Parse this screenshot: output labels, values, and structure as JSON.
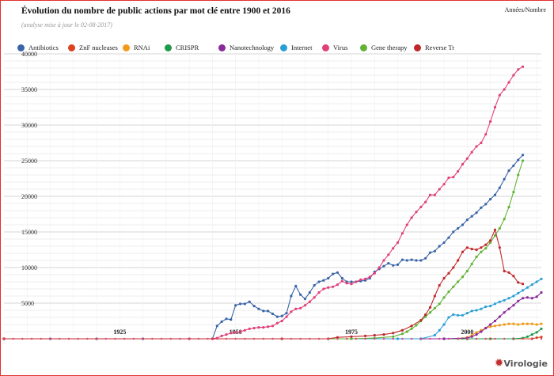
{
  "header": {
    "title": "Évolution du nombre de public actions par mot clé entre 1900 et 2016",
    "subtitle": "(analyse mise à jour le 02-08-2017)",
    "top_right": "Années/Nombre"
  },
  "logo": {
    "text": "Virologie"
  },
  "chart_data": {
    "type": "line",
    "title": "Évolution du nombre de public actions par mot clé entre 1900 et 2016",
    "subtitle": "(analyse mise à jour le 02-08-2017)",
    "xlabel": "",
    "ylabel": "",
    "xlim": [
      1900,
      2016
    ],
    "ylim": [
      0,
      40000
    ],
    "yticks": [
      5000,
      10000,
      15000,
      20000,
      25000,
      30000,
      35000,
      40000
    ],
    "xtick_labels": [
      1925,
      1950,
      1975,
      2000
    ],
    "grid": true,
    "legend_position": "top",
    "series": [
      {
        "name": "Antibiotics",
        "color": "#3a64a8",
        "points": [
          [
            1900,
            0
          ],
          [
            1910,
            0
          ],
          [
            1920,
            0
          ],
          [
            1930,
            0
          ],
          [
            1940,
            0
          ],
          [
            1945,
            0
          ],
          [
            1946,
            1800
          ],
          [
            1947,
            2400
          ],
          [
            1948,
            2800
          ],
          [
            1949,
            2700
          ],
          [
            1950,
            4700
          ],
          [
            1951,
            4900
          ],
          [
            1952,
            4900
          ],
          [
            1953,
            5200
          ],
          [
            1954,
            4600
          ],
          [
            1955,
            4200
          ],
          [
            1956,
            3900
          ],
          [
            1957,
            3900
          ],
          [
            1958,
            3500
          ],
          [
            1959,
            3100
          ],
          [
            1960,
            3200
          ],
          [
            1961,
            3600
          ],
          [
            1962,
            6000
          ],
          [
            1963,
            7400
          ],
          [
            1964,
            6200
          ],
          [
            1965,
            5600
          ],
          [
            1966,
            6500
          ],
          [
            1967,
            7500
          ],
          [
            1968,
            8000
          ],
          [
            1969,
            8200
          ],
          [
            1970,
            8500
          ],
          [
            1971,
            9100
          ],
          [
            1972,
            9300
          ],
          [
            1973,
            8500
          ],
          [
            1974,
            8000
          ],
          [
            1975,
            8000
          ],
          [
            1976,
            8000
          ],
          [
            1977,
            8100
          ],
          [
            1978,
            8200
          ],
          [
            1979,
            8500
          ],
          [
            1980,
            9400
          ],
          [
            1981,
            9800
          ],
          [
            1982,
            10200
          ],
          [
            1983,
            10600
          ],
          [
            1984,
            10300
          ],
          [
            1985,
            10400
          ],
          [
            1986,
            11100
          ],
          [
            1987,
            11000
          ],
          [
            1988,
            11100
          ],
          [
            1989,
            11000
          ],
          [
            1990,
            11000
          ],
          [
            1991,
            11300
          ],
          [
            1992,
            12100
          ],
          [
            1993,
            12300
          ],
          [
            1994,
            13000
          ],
          [
            1995,
            13500
          ],
          [
            1996,
            14200
          ],
          [
            1997,
            15000
          ],
          [
            1998,
            15500
          ],
          [
            1999,
            16000
          ],
          [
            2000,
            16700
          ],
          [
            2001,
            17200
          ],
          [
            2002,
            17700
          ],
          [
            2003,
            18400
          ],
          [
            2004,
            18900
          ],
          [
            2005,
            19600
          ],
          [
            2006,
            20200
          ],
          [
            2007,
            21200
          ],
          [
            2008,
            22400
          ],
          [
            2009,
            23600
          ],
          [
            2010,
            24300
          ],
          [
            2011,
            25100
          ],
          [
            2012,
            25800
          ]
        ]
      },
      {
        "name": "ZnF nucleases",
        "color": "#d9431e",
        "points": [
          [
            1900,
            0
          ],
          [
            1990,
            0
          ],
          [
            1995,
            0
          ],
          [
            2000,
            0
          ],
          [
            2005,
            0
          ],
          [
            2010,
            0
          ],
          [
            2014,
            0
          ],
          [
            2015,
            150
          ],
          [
            2016,
            250
          ]
        ]
      },
      {
        "name": "RNAi",
        "color": "#f29a1a",
        "points": [
          [
            1900,
            0
          ],
          [
            1998,
            0
          ],
          [
            1999,
            50
          ],
          [
            2000,
            200
          ],
          [
            2001,
            500
          ],
          [
            2002,
            900
          ],
          [
            2003,
            1200
          ],
          [
            2004,
            1500
          ],
          [
            2005,
            1700
          ],
          [
            2006,
            1800
          ],
          [
            2007,
            1900
          ],
          [
            2008,
            2000
          ],
          [
            2009,
            2100
          ],
          [
            2010,
            2100
          ],
          [
            2011,
            2000
          ],
          [
            2012,
            2100
          ],
          [
            2013,
            2100
          ],
          [
            2014,
            2100
          ],
          [
            2015,
            2000
          ],
          [
            2016,
            2100
          ]
        ]
      },
      {
        "name": "CRISPR",
        "color": "#1f9a4a",
        "points": [
          [
            1900,
            0
          ],
          [
            2000,
            0
          ],
          [
            2010,
            0
          ],
          [
            2012,
            100
          ],
          [
            2013,
            300
          ],
          [
            2014,
            600
          ],
          [
            2015,
            900
          ],
          [
            2016,
            1400
          ]
        ]
      },
      {
        "name": "Nanotechnology",
        "color": "#8a2a9a",
        "points": [
          [
            1900,
            0
          ],
          [
            1990,
            0
          ],
          [
            1995,
            0
          ],
          [
            2000,
            100
          ],
          [
            2001,
            300
          ],
          [
            2002,
            600
          ],
          [
            2003,
            1000
          ],
          [
            2004,
            1500
          ],
          [
            2005,
            2000
          ],
          [
            2006,
            2500
          ],
          [
            2007,
            3100
          ],
          [
            2008,
            3700
          ],
          [
            2009,
            4200
          ],
          [
            2010,
            4700
          ],
          [
            2011,
            5300
          ],
          [
            2012,
            5700
          ],
          [
            2013,
            5800
          ],
          [
            2014,
            5700
          ],
          [
            2015,
            5900
          ],
          [
            2016,
            6500
          ]
        ]
      },
      {
        "name": "Internet",
        "color": "#2a9fd6",
        "points": [
          [
            1900,
            0
          ],
          [
            1985,
            0
          ],
          [
            1990,
            0
          ],
          [
            1993,
            500
          ],
          [
            1994,
            1200
          ],
          [
            1995,
            2000
          ],
          [
            1996,
            3000
          ],
          [
            1997,
            3400
          ],
          [
            1998,
            3300
          ],
          [
            1999,
            3300
          ],
          [
            2000,
            3600
          ],
          [
            2001,
            3900
          ],
          [
            2002,
            4000
          ],
          [
            2003,
            4200
          ],
          [
            2004,
            4500
          ],
          [
            2005,
            4600
          ],
          [
            2006,
            4900
          ],
          [
            2007,
            5200
          ],
          [
            2008,
            5400
          ],
          [
            2009,
            5700
          ],
          [
            2010,
            6000
          ],
          [
            2011,
            6400
          ],
          [
            2012,
            6800
          ],
          [
            2013,
            7200
          ],
          [
            2014,
            7600
          ],
          [
            2015,
            8000
          ],
          [
            2016,
            8400
          ]
        ]
      },
      {
        "name": "Virus",
        "color": "#e0407a",
        "points": [
          [
            1900,
            0
          ],
          [
            1940,
            0
          ],
          [
            1945,
            0
          ],
          [
            1946,
            100
          ],
          [
            1947,
            400
          ],
          [
            1948,
            600
          ],
          [
            1949,
            800
          ],
          [
            1950,
            900
          ],
          [
            1951,
            1000
          ],
          [
            1952,
            1200
          ],
          [
            1953,
            1400
          ],
          [
            1954,
            1500
          ],
          [
            1955,
            1600
          ],
          [
            1956,
            1600
          ],
          [
            1957,
            1700
          ],
          [
            1958,
            1800
          ],
          [
            1959,
            2200
          ],
          [
            1960,
            2500
          ],
          [
            1961,
            3100
          ],
          [
            1962,
            3800
          ],
          [
            1963,
            4200
          ],
          [
            1964,
            4300
          ],
          [
            1965,
            4700
          ],
          [
            1966,
            5200
          ],
          [
            1967,
            5800
          ],
          [
            1968,
            6500
          ],
          [
            1969,
            7000
          ],
          [
            1970,
            7200
          ],
          [
            1971,
            7300
          ],
          [
            1972,
            7600
          ],
          [
            1973,
            8100
          ],
          [
            1974,
            7800
          ],
          [
            1975,
            7700
          ],
          [
            1976,
            8000
          ],
          [
            1977,
            8300
          ],
          [
            1978,
            8400
          ],
          [
            1979,
            8700
          ],
          [
            1980,
            9200
          ],
          [
            1981,
            10000
          ],
          [
            1982,
            11000
          ],
          [
            1983,
            11800
          ],
          [
            1984,
            12700
          ],
          [
            1985,
            13500
          ],
          [
            1986,
            14800
          ],
          [
            1987,
            16000
          ],
          [
            1988,
            17000
          ],
          [
            1989,
            17800
          ],
          [
            1990,
            18500
          ],
          [
            1991,
            19200
          ],
          [
            1992,
            20200
          ],
          [
            1993,
            20200
          ],
          [
            1994,
            21000
          ],
          [
            1995,
            21700
          ],
          [
            1996,
            22600
          ],
          [
            1997,
            22700
          ],
          [
            1998,
            23500
          ],
          [
            1999,
            24500
          ],
          [
            2000,
            25300
          ],
          [
            2001,
            26200
          ],
          [
            2002,
            27000
          ],
          [
            2003,
            27500
          ],
          [
            2004,
            28700
          ],
          [
            2005,
            30500
          ],
          [
            2006,
            32500
          ],
          [
            2007,
            34200
          ],
          [
            2008,
            35000
          ],
          [
            2009,
            36000
          ],
          [
            2010,
            37000
          ],
          [
            2011,
            37800
          ],
          [
            2012,
            38200
          ]
        ]
      },
      {
        "name": "Gene therapy",
        "color": "#62b236",
        "points": [
          [
            1900,
            0
          ],
          [
            1960,
            0
          ],
          [
            1975,
            0
          ],
          [
            1980,
            100
          ],
          [
            1984,
            300
          ],
          [
            1986,
            700
          ],
          [
            1987,
            1000
          ],
          [
            1988,
            1400
          ],
          [
            1989,
            1900
          ],
          [
            1990,
            2500
          ],
          [
            1991,
            3100
          ],
          [
            1992,
            3700
          ],
          [
            1993,
            4300
          ],
          [
            1994,
            4900
          ],
          [
            1995,
            5800
          ],
          [
            1996,
            6600
          ],
          [
            1997,
            7300
          ],
          [
            1998,
            8000
          ],
          [
            1999,
            8700
          ],
          [
            2000,
            9500
          ],
          [
            2001,
            10500
          ],
          [
            2002,
            11500
          ],
          [
            2003,
            12200
          ],
          [
            2004,
            12700
          ],
          [
            2005,
            13500
          ],
          [
            2006,
            14500
          ],
          [
            2007,
            15500
          ],
          [
            2008,
            16800
          ],
          [
            2009,
            18500
          ],
          [
            2010,
            20600
          ],
          [
            2011,
            23000
          ],
          [
            2012,
            25000
          ]
        ]
      },
      {
        "name": "Reverse Tr",
        "color": "#c0282a",
        "points": [
          [
            1900,
            0
          ],
          [
            1960,
            0
          ],
          [
            1970,
            0
          ],
          [
            1972,
            200
          ],
          [
            1975,
            300
          ],
          [
            1978,
            400
          ],
          [
            1980,
            500
          ],
          [
            1982,
            600
          ],
          [
            1984,
            800
          ],
          [
            1986,
            1200
          ],
          [
            1988,
            1800
          ],
          [
            1990,
            2600
          ],
          [
            1991,
            3400
          ],
          [
            1992,
            4400
          ],
          [
            1993,
            6000
          ],
          [
            1994,
            7500
          ],
          [
            1995,
            8500
          ],
          [
            1996,
            9200
          ],
          [
            1997,
            10000
          ],
          [
            1998,
            11000
          ],
          [
            1999,
            12200
          ],
          [
            2000,
            12800
          ],
          [
            2001,
            12600
          ],
          [
            2002,
            12500
          ],
          [
            2003,
            12800
          ],
          [
            2004,
            13200
          ],
          [
            2005,
            13800
          ],
          [
            2006,
            15300
          ],
          [
            2007,
            12800
          ],
          [
            2008,
            9500
          ],
          [
            2009,
            9300
          ],
          [
            2010,
            8800
          ],
          [
            2011,
            7900
          ],
          [
            2012,
            7700
          ]
        ]
      }
    ]
  }
}
